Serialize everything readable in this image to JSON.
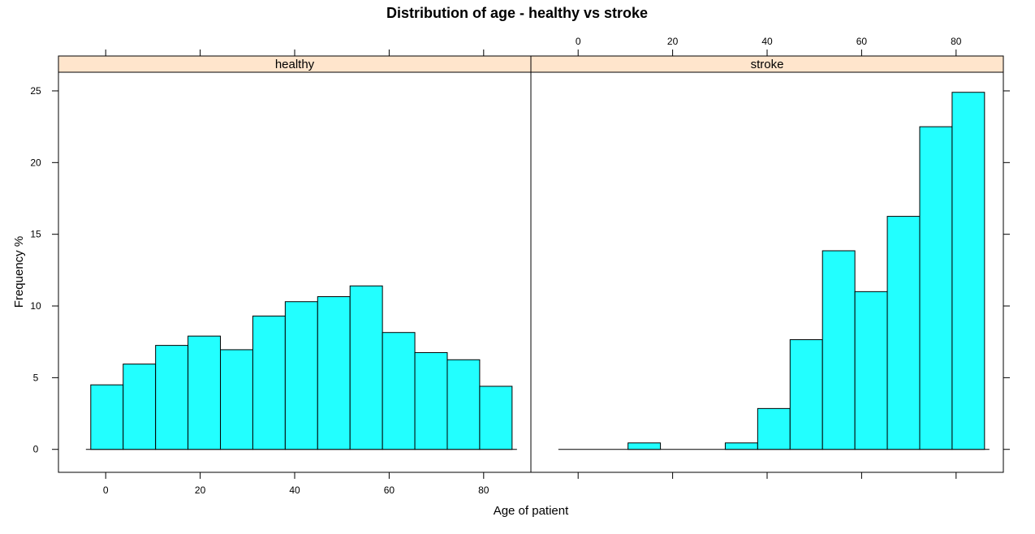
{
  "chart_data": {
    "type": "bar",
    "title": "Distribution of age - healthy vs stroke",
    "xlabel": "Age of patient",
    "ylabel": "Frequency %",
    "xlim": [
      -10,
      90
    ],
    "ylim": [
      -1.6,
      26.3
    ],
    "x_ticks": [
      0,
      20,
      40,
      60,
      80
    ],
    "y_ticks": [
      0,
      5,
      10,
      15,
      20,
      25
    ],
    "colors": {
      "bar_fill": "#22ffff",
      "strip_fill": "#ffe5cc"
    },
    "panels": [
      {
        "name": "healthy",
        "bin_edges": [
          -3.16,
          3.7,
          10.56,
          17.42,
          24.28,
          31.14,
          38.0,
          44.86,
          51.72,
          58.58,
          65.44,
          72.3,
          79.16,
          86.02
        ],
        "values": [
          4.5,
          5.95,
          7.25,
          7.9,
          6.95,
          9.3,
          10.3,
          10.65,
          11.4,
          8.15,
          6.75,
          6.25,
          4.4
        ]
      },
      {
        "name": "stroke",
        "bin_edges": [
          -3.16,
          3.7,
          10.56,
          17.42,
          24.28,
          31.14,
          38.0,
          44.86,
          51.72,
          58.58,
          65.44,
          72.3,
          79.16,
          86.02
        ],
        "values": [
          0,
          0,
          0.45,
          0,
          0,
          0.45,
          2.85,
          7.65,
          13.85,
          11.0,
          16.25,
          22.5,
          24.9
        ]
      }
    ]
  }
}
